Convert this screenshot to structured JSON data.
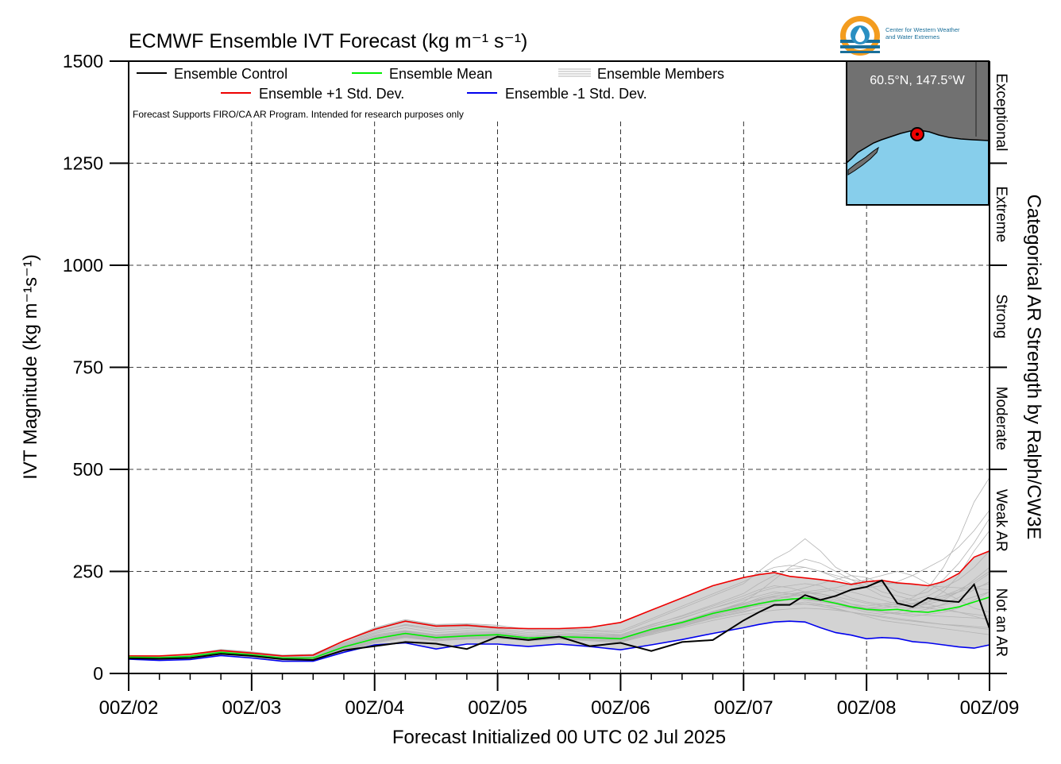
{
  "chart_data": {
    "type": "line",
    "title": "ECMWF Ensemble IVT Forecast (kg m⁻¹ s⁻¹)",
    "xlabel": "Forecast Initialized 00 UTC 02 Jul 2025",
    "ylabel": "IVT Magnitude (kg m⁻¹s⁻¹)",
    "y2label": "Categorical AR Strength by Ralph/CW3E",
    "note": "Forecast Supports FIRO/CA AR Program. Intended for research purposes only",
    "location": "60.5°N, 147.5°W",
    "logo_text": [
      "Center for Western Weather",
      "and Water Extremes"
    ],
    "xlim": [
      0,
      168
    ],
    "ylim": [
      0,
      1500
    ],
    "x_tick_hours": [
      0,
      24,
      48,
      72,
      96,
      120,
      144,
      168
    ],
    "x_tick_labels": [
      "00Z/02",
      "00Z/03",
      "00Z/04",
      "00Z/05",
      "00Z/06",
      "00Z/07",
      "00Z/08",
      "00Z/09"
    ],
    "y_ticks": [
      0,
      250,
      500,
      750,
      1000,
      1250,
      1500
    ],
    "y_tick_labels": [
      "0",
      "250",
      "500",
      "750",
      "1000",
      "1250",
      "1500"
    ],
    "categories_right": [
      {
        "label": "Not an AR",
        "from": 0,
        "to": 250
      },
      {
        "label": "Weak AR",
        "from": 250,
        "to": 500
      },
      {
        "label": "Moderate",
        "from": 500,
        "to": 750
      },
      {
        "label": "Strong",
        "from": 750,
        "to": 1000
      },
      {
        "label": "Extreme",
        "from": 1000,
        "to": 1250
      },
      {
        "label": "Exceptional",
        "from": 1250,
        "to": 1500
      }
    ],
    "x_hours": [
      0,
      6,
      12,
      18,
      24,
      30,
      36,
      42,
      48,
      54,
      60,
      66,
      72,
      78,
      84,
      90,
      96,
      102,
      108,
      114,
      120,
      123,
      126,
      129,
      132,
      135,
      138,
      141,
      144,
      147,
      150,
      153,
      156,
      159,
      162,
      165,
      168
    ],
    "series": [
      {
        "name": "Ensemble Control",
        "color": "#000000",
        "values": [
          37,
          36,
          38,
          48,
          43,
          35,
          33,
          57,
          67,
          77,
          73,
          60,
          90,
          82,
          90,
          67,
          75,
          55,
          77,
          82,
          130,
          150,
          168,
          168,
          192,
          180,
          190,
          205,
          212,
          228,
          172,
          163,
          185,
          178,
          175,
          218,
          110
        ]
      },
      {
        "name": "Ensemble Mean",
        "color": "#00ee00",
        "values": [
          40,
          39,
          42,
          52,
          46,
          38,
          38,
          65,
          85,
          98,
          88,
          92,
          95,
          87,
          90,
          88,
          85,
          108,
          125,
          147,
          163,
          171,
          178,
          182,
          185,
          180,
          172,
          163,
          157,
          155,
          157,
          152,
          150,
          156,
          163,
          175,
          187
        ]
      },
      {
        "name": "Ensemble +1 Std. Dev.",
        "color": "#ee0000",
        "values": [
          43,
          43,
          47,
          56,
          50,
          43,
          45,
          80,
          108,
          128,
          116,
          118,
          112,
          110,
          110,
          113,
          125,
          155,
          185,
          215,
          235,
          242,
          247,
          238,
          234,
          230,
          225,
          218,
          225,
          228,
          222,
          219,
          215,
          225,
          245,
          285,
          300
        ]
      },
      {
        "name": "Ensemble -1 Std. Dev.",
        "color": "#0000ee",
        "values": [
          35,
          32,
          34,
          44,
          38,
          30,
          30,
          52,
          70,
          75,
          60,
          72,
          72,
          66,
          72,
          66,
          58,
          70,
          83,
          98,
          112,
          120,
          126,
          128,
          126,
          112,
          100,
          94,
          85,
          88,
          86,
          78,
          75,
          70,
          65,
          62,
          70
        ]
      }
    ],
    "members_label": "Ensemble Members",
    "members_color": "#b4b4b4",
    "spread_color": "#d3d3d3",
    "members": [
      [
        36,
        34,
        40,
        50,
        45,
        38,
        36,
        60,
        80,
        92,
        85,
        88,
        92,
        84,
        88,
        85,
        80,
        100,
        120,
        140,
        155,
        170,
        180,
        190,
        200,
        195,
        185,
        170,
        160,
        150,
        145,
        140,
        145,
        150,
        160,
        180,
        200
      ],
      [
        40,
        38,
        44,
        55,
        48,
        40,
        40,
        70,
        95,
        105,
        95,
        100,
        100,
        90,
        95,
        92,
        90,
        115,
        135,
        160,
        180,
        190,
        200,
        195,
        190,
        185,
        175,
        165,
        160,
        165,
        170,
        180,
        190,
        210,
        230,
        260,
        300
      ],
      [
        38,
        35,
        40,
        52,
        44,
        36,
        34,
        62,
        85,
        100,
        90,
        95,
        98,
        88,
        92,
        90,
        88,
        110,
        128,
        150,
        170,
        185,
        195,
        200,
        210,
        220,
        230,
        240,
        235,
        220,
        200,
        190,
        200,
        230,
        270,
        320,
        380
      ],
      [
        42,
        40,
        45,
        56,
        50,
        42,
        44,
        75,
        100,
        120,
        110,
        115,
        110,
        100,
        105,
        100,
        95,
        120,
        140,
        165,
        190,
        205,
        215,
        210,
        200,
        190,
        180,
        170,
        165,
        170,
        175,
        185,
        210,
        260,
        330,
        420,
        480
      ],
      [
        34,
        32,
        36,
        48,
        42,
        34,
        32,
        55,
        75,
        88,
        80,
        85,
        88,
        80,
        85,
        82,
        78,
        95,
        115,
        135,
        150,
        160,
        165,
        170,
        175,
        170,
        160,
        150,
        140,
        130,
        125,
        120,
        115,
        110,
        105,
        100,
        95
      ],
      [
        44,
        42,
        46,
        58,
        52,
        44,
        46,
        78,
        110,
        130,
        118,
        120,
        115,
        105,
        108,
        104,
        100,
        130,
        160,
        190,
        220,
        250,
        280,
        300,
        330,
        300,
        260,
        240,
        220,
        200,
        190,
        180,
        170,
        160,
        150,
        140,
        130
      ],
      [
        36,
        35,
        38,
        48,
        42,
        35,
        35,
        58,
        78,
        90,
        82,
        86,
        90,
        82,
        86,
        84,
        82,
        100,
        118,
        138,
        158,
        168,
        175,
        180,
        185,
        180,
        170,
        160,
        150,
        145,
        150,
        160,
        175,
        200,
        240,
        300,
        350
      ],
      [
        40,
        37,
        42,
        54,
        47,
        39,
        38,
        66,
        90,
        102,
        92,
        96,
        96,
        86,
        90,
        88,
        86,
        106,
        126,
        150,
        175,
        200,
        230,
        260,
        280,
        270,
        250,
        230,
        210,
        190,
        180,
        170,
        160,
        155,
        150,
        145,
        140
      ],
      [
        37,
        36,
        39,
        50,
        45,
        37,
        36,
        60,
        82,
        94,
        86,
        90,
        92,
        84,
        88,
        86,
        84,
        104,
        122,
        145,
        165,
        180,
        190,
        195,
        200,
        205,
        210,
        220,
        230,
        240,
        250,
        240,
        220,
        200,
        180,
        160,
        150
      ],
      [
        41,
        39,
        43,
        53,
        46,
        38,
        39,
        68,
        92,
        104,
        94,
        98,
        98,
        88,
        92,
        90,
        88,
        108,
        128,
        152,
        172,
        182,
        188,
        185,
        180,
        175,
        170,
        165,
        160,
        160,
        165,
        170,
        180,
        190,
        200,
        210,
        220
      ],
      [
        35,
        33,
        37,
        49,
        43,
        35,
        33,
        56,
        76,
        90,
        80,
        84,
        86,
        80,
        84,
        80,
        76,
        96,
        112,
        130,
        145,
        150,
        155,
        158,
        160,
        158,
        155,
        150,
        145,
        140,
        135,
        130,
        125,
        120,
        118,
        115,
        112
      ],
      [
        43,
        41,
        45,
        57,
        51,
        43,
        44,
        74,
        104,
        118,
        106,
        110,
        106,
        96,
        100,
        96,
        94,
        118,
        142,
        168,
        196,
        220,
        240,
        255,
        260,
        250,
        235,
        220,
        210,
        215,
        225,
        240,
        260,
        280,
        310,
        350,
        400
      ],
      [
        38,
        36,
        40,
        51,
        45,
        37,
        36,
        62,
        84,
        96,
        88,
        92,
        94,
        86,
        90,
        87,
        85,
        105,
        124,
        146,
        164,
        174,
        182,
        188,
        192,
        185,
        175,
        165,
        158,
        152,
        148,
        145,
        142,
        140,
        138,
        136,
        135
      ],
      [
        39,
        37,
        41,
        52,
        46,
        38,
        37,
        64,
        88,
        100,
        90,
        94,
        95,
        86,
        90,
        88,
        86,
        106,
        125,
        148,
        168,
        178,
        186,
        190,
        195,
        200,
        205,
        200,
        190,
        180,
        170,
        165,
        170,
        180,
        200,
        230,
        260
      ],
      [
        36,
        34,
        38,
        49,
        43,
        36,
        35,
        58,
        80,
        92,
        84,
        88,
        90,
        82,
        86,
        84,
        82,
        102,
        120,
        142,
        160,
        166,
        170,
        172,
        170,
        165,
        158,
        150,
        144,
        138,
        132,
        128,
        124,
        120,
        116,
        112,
        108
      ],
      [
        42,
        40,
        44,
        55,
        49,
        41,
        42,
        72,
        98,
        112,
        100,
        104,
        102,
        92,
        96,
        94,
        92,
        114,
        136,
        160,
        184,
        200,
        210,
        215,
        220,
        215,
        200,
        185,
        175,
        170,
        168,
        170,
        175,
        185,
        200,
        220,
        245
      ],
      [
        37,
        35,
        39,
        50,
        44,
        36,
        35,
        60,
        82,
        94,
        86,
        90,
        92,
        84,
        88,
        86,
        84,
        103,
        121,
        143,
        161,
        170,
        176,
        180,
        182,
        178,
        170,
        162,
        155,
        150,
        146,
        150,
        158,
        170,
        186,
        205,
        225
      ],
      [
        40,
        38,
        42,
        53,
        47,
        39,
        39,
        67,
        91,
        103,
        93,
        97,
        97,
        87,
        91,
        89,
        87,
        107,
        127,
        151,
        171,
        182,
        190,
        195,
        198,
        195,
        188,
        180,
        172,
        166,
        162,
        160,
        162,
        168,
        176,
        188,
        200
      ],
      [
        35,
        33,
        37,
        48,
        42,
        35,
        34,
        57,
        78,
        91,
        82,
        86,
        88,
        81,
        85,
        82,
        79,
        98,
        116,
        137,
        152,
        160,
        165,
        168,
        170,
        168,
        165,
        160,
        158,
        160,
        165,
        172,
        180,
        190,
        205,
        225,
        250
      ],
      [
        44,
        43,
        47,
        59,
        53,
        45,
        47,
        80,
        112,
        132,
        120,
        122,
        118,
        108,
        110,
        106,
        104,
        134,
        165,
        195,
        225,
        245,
        260,
        265,
        260,
        250,
        240,
        230,
        225,
        222,
        220,
        218,
        215,
        212,
        210,
        208,
        205
      ]
    ]
  }
}
